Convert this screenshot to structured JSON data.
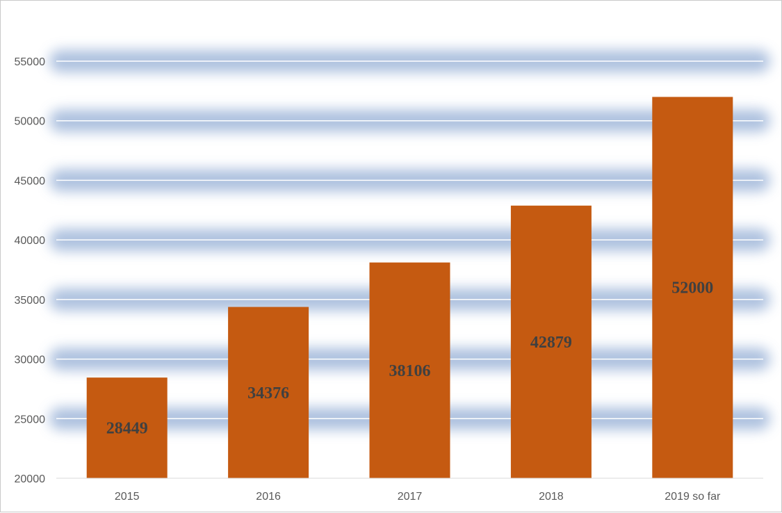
{
  "chart_data": {
    "type": "bar",
    "title": "",
    "xlabel": "",
    "ylabel": "",
    "categories": [
      "2015",
      "2016",
      "2017",
      "2018",
      "2019 so far"
    ],
    "values": [
      28449,
      34376,
      38106,
      42879,
      52000
    ],
    "data_labels": [
      "28449",
      "34376",
      "38106",
      "42879",
      "52000"
    ],
    "ylim": [
      20000,
      55000
    ],
    "yticks": [
      20000,
      25000,
      30000,
      35000,
      40000,
      45000,
      50000,
      55000
    ],
    "grid": true,
    "legend": "none",
    "bar_color": "#C55A11",
    "gridline_color": "#ffffff",
    "band_color": "#9FB6D9"
  }
}
